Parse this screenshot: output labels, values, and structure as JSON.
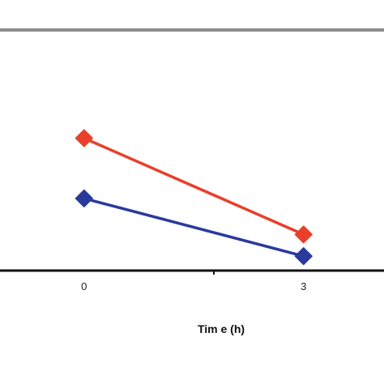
{
  "chart_data": {
    "type": "line",
    "xlabel": "Tim e (h)",
    "ylabel": "",
    "x": [
      0,
      3
    ],
    "x_tick_labels": [
      "0",
      "3"
    ],
    "xlim": [
      -1.15,
      4.1
    ],
    "ylim": [
      0,
      100
    ],
    "grid": false,
    "series": [
      {
        "values": [
          55,
          15
        ],
        "color": "#e8402a",
        "marker": "diamond"
      },
      {
        "values": [
          30,
          6
        ],
        "color": "#2a3a9c",
        "marker": "diamond"
      }
    ],
    "colors": {
      "axis": "#111111",
      "top_border": "#8a8c8e"
    }
  }
}
